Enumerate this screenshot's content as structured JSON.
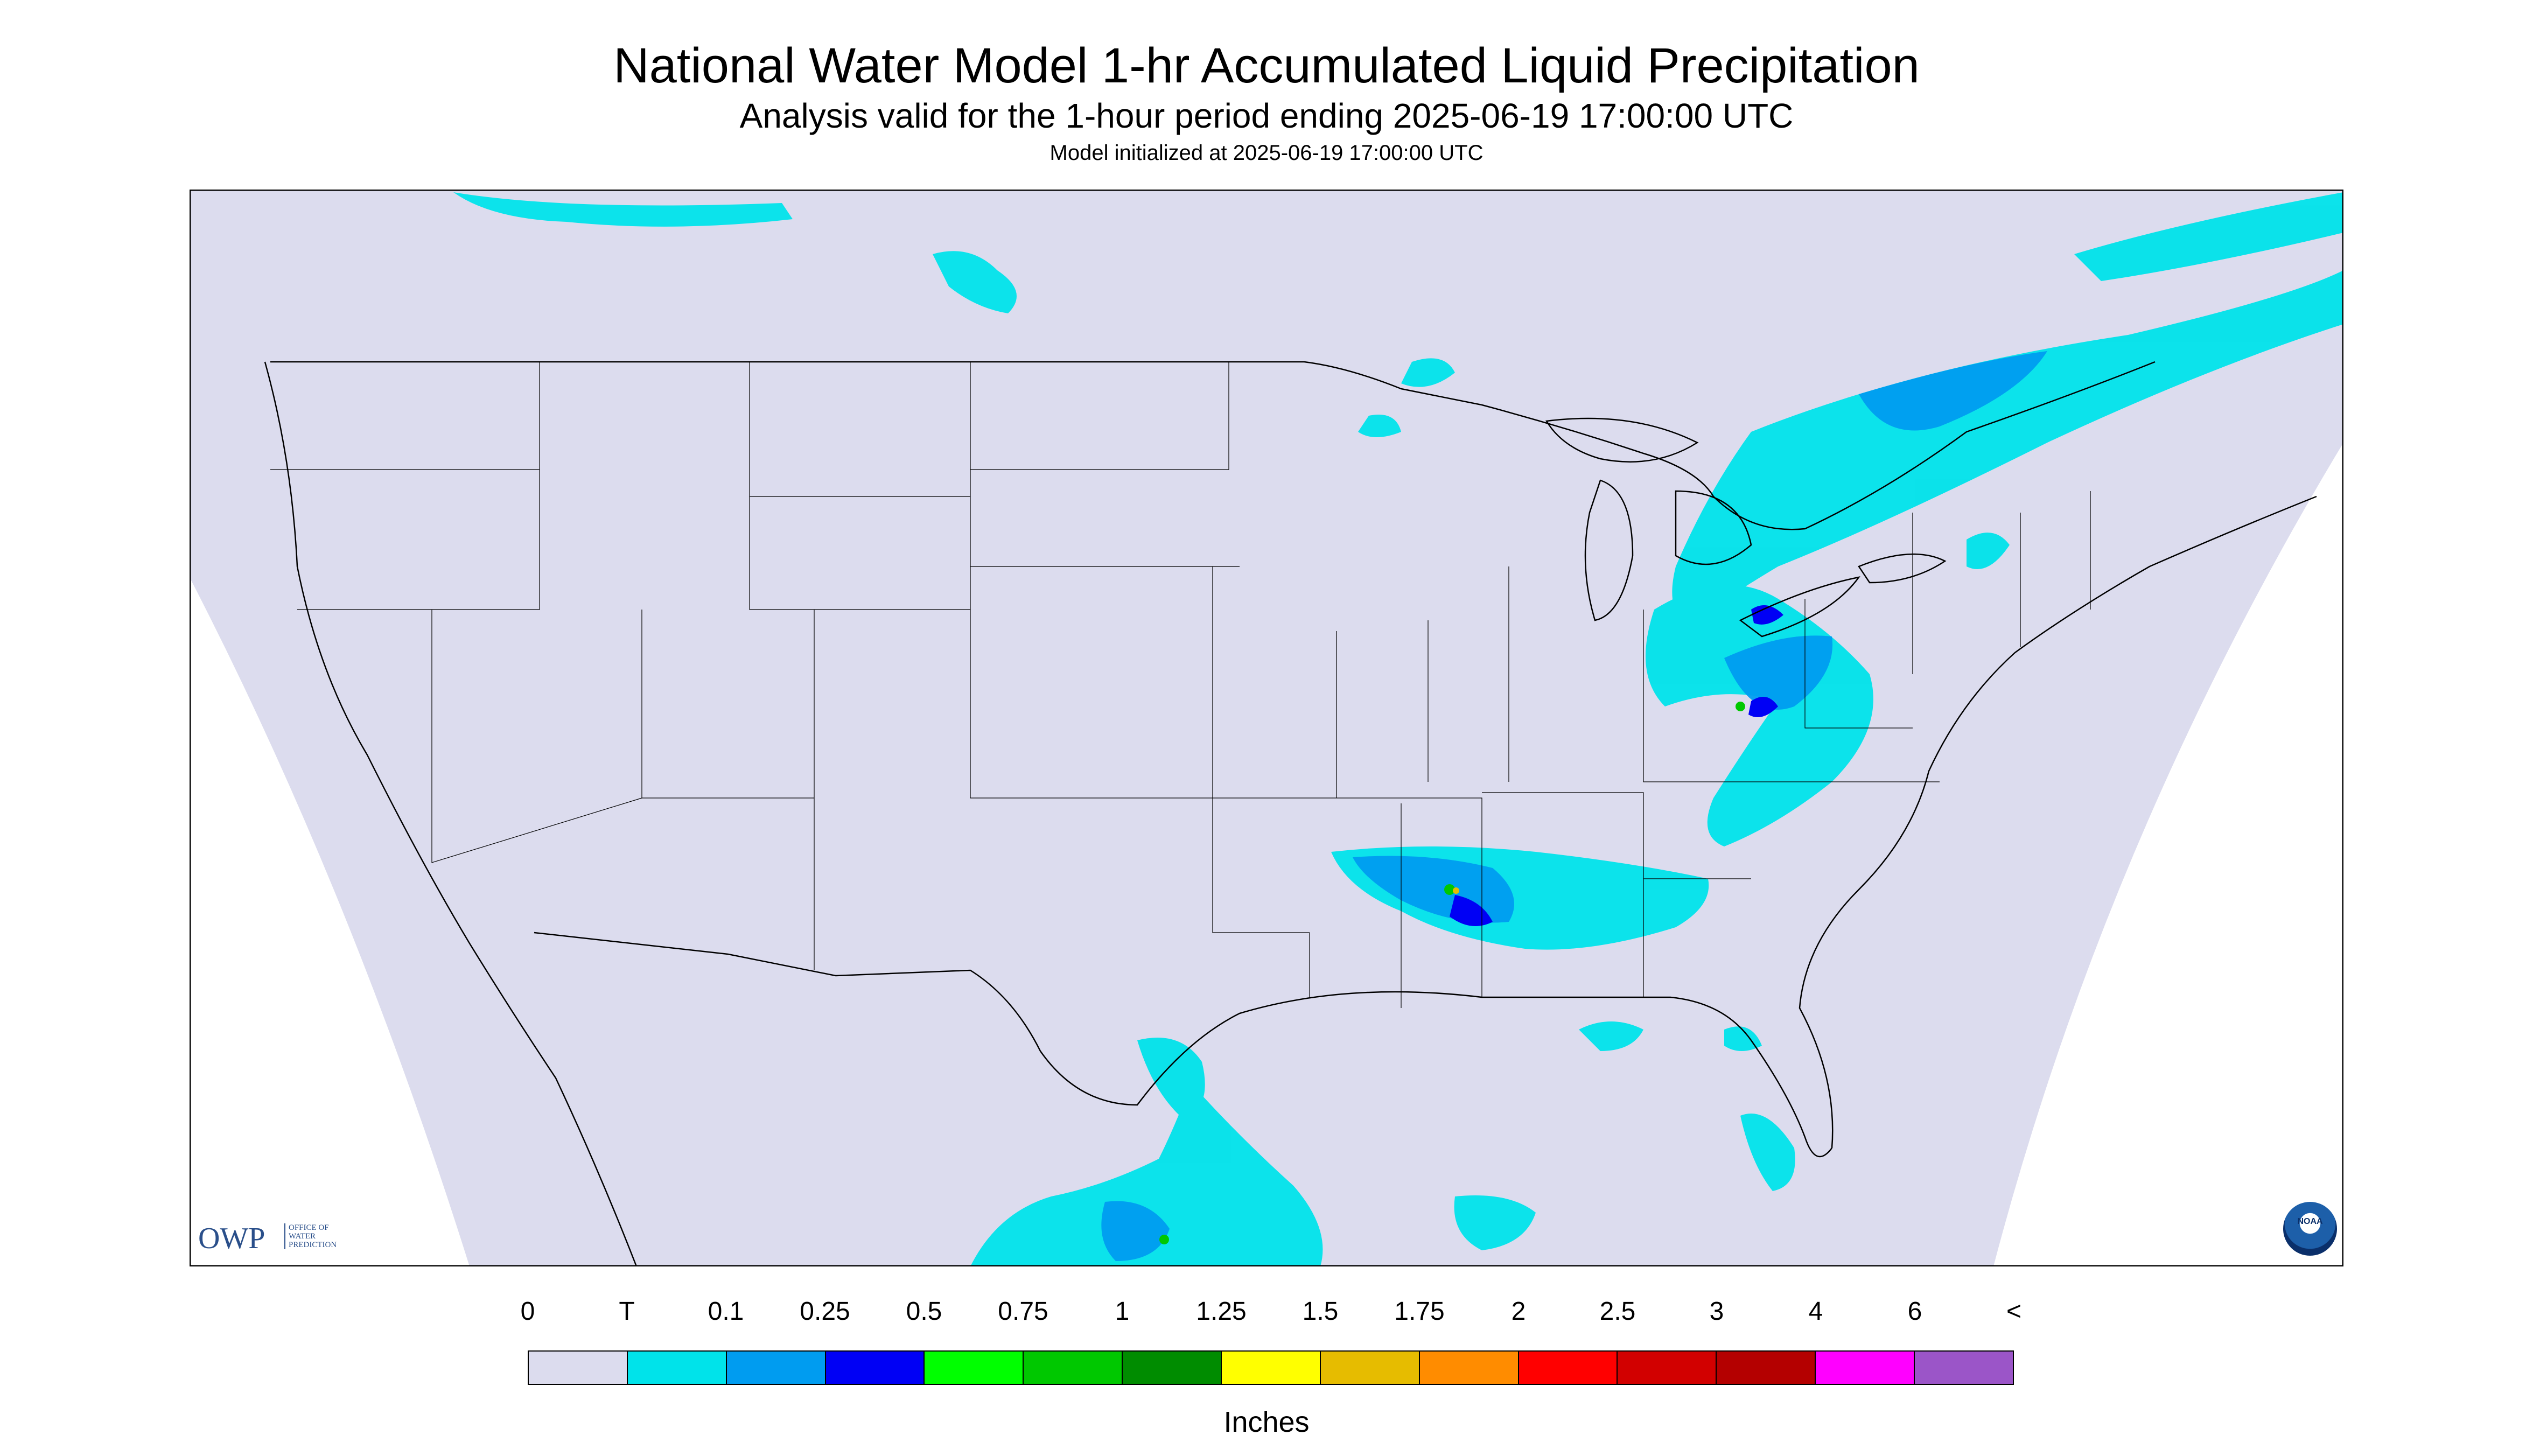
{
  "title": "National Water Model 1-hr Accumulated Liquid Precipitation",
  "subtitle": "Analysis valid for the 1-hour period ending 2025-06-19 17:00:00 UTC",
  "init_line": "Model initialized at 2025-06-19 17:00:00 UTC",
  "logo_owp": {
    "mark": "OWP",
    "text": [
      "OFFICE OF",
      "WATER",
      "PREDICTION"
    ]
  },
  "logo_noaa": "NOAA",
  "legend": {
    "labels": [
      "0",
      "T",
      "0.1",
      "0.25",
      "0.5",
      "0.75",
      "1",
      "1.25",
      "1.5",
      "1.75",
      "2",
      "2.5",
      "3",
      "4",
      "6",
      "<"
    ],
    "colors": [
      "#dcdcee",
      "#00e3ea",
      "#009cf0",
      "#0000f5",
      "#00ff00",
      "#00c800",
      "#008c00",
      "#ffff00",
      "#e6bc00",
      "#ff8c00",
      "#ff0000",
      "#d20000",
      "#b40000",
      "#ff00ff",
      "#9b55c8"
    ],
    "units": "Inches"
  },
  "map_colors": {
    "background": "#dcdcee",
    "outside": "#ffffff",
    "border_line": "#000000",
    "trace": "#00e3ea",
    "light": "#009cf0",
    "moderate": "#0000f5",
    "heavy": "#00c800",
    "extreme": "#e6bc00"
  }
}
